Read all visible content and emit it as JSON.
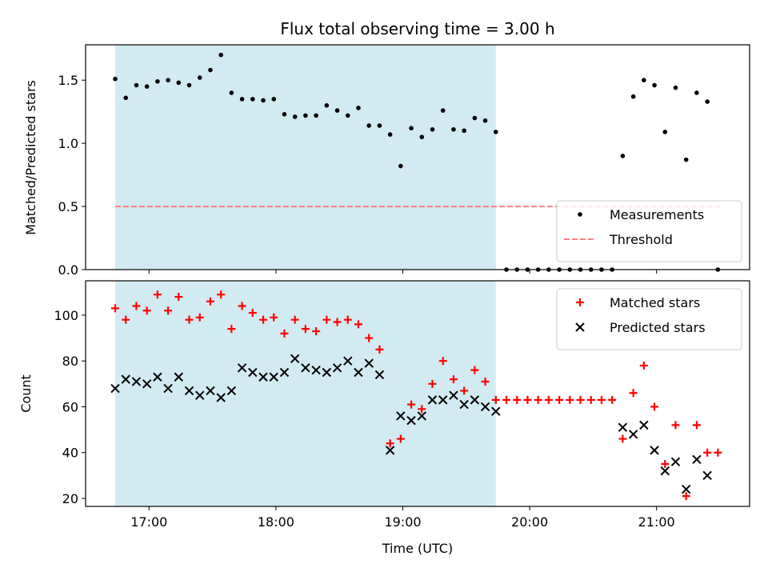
{
  "chart_data": [
    {
      "type": "scatter",
      "title": "Flux total observing time = 3.00 h",
      "xlabel": "",
      "ylabel": "Matched/Predicted stars",
      "ylim": [
        0,
        1.78
      ],
      "yticks": [
        "0.0",
        "0.5",
        "1.0",
        "1.5"
      ],
      "ytick_values": [
        0,
        0.5,
        1.0,
        1.5
      ],
      "legend_position": "lower-right",
      "shaded_region": {
        "x_start": "16:44",
        "x_end": "19:44",
        "color": "#add8e6"
      },
      "threshold": {
        "name": "Threshold",
        "value": 0.5,
        "x_start": "16:44",
        "x_end": "21:30",
        "color": "#ff7f7f"
      },
      "series": [
        {
          "name": "Measurements",
          "marker": "dot",
          "color": "#000000",
          "x": [
            "16:44",
            "16:49",
            "16:54",
            "16:59",
            "17:04",
            "17:09",
            "17:14",
            "17:19",
            "17:24",
            "17:29",
            "17:34",
            "17:39",
            "17:44",
            "17:49",
            "17:54",
            "17:59",
            "18:04",
            "18:09",
            "18:14",
            "18:19",
            "18:24",
            "18:29",
            "18:34",
            "18:39",
            "18:44",
            "18:49",
            "18:54",
            "18:59",
            "19:04",
            "19:09",
            "19:14",
            "19:19",
            "19:24",
            "19:29",
            "19:34",
            "19:39",
            "19:44",
            "19:49",
            "19:54",
            "19:59",
            "20:04",
            "20:09",
            "20:14",
            "20:19",
            "20:24",
            "20:29",
            "20:34",
            "20:39",
            "20:44",
            "20:49",
            "20:54",
            "20:59",
            "21:04",
            "21:09",
            "21:14",
            "21:19",
            "21:24",
            "21:29"
          ],
          "y": [
            1.51,
            1.36,
            1.46,
            1.45,
            1.49,
            1.5,
            1.48,
            1.46,
            1.52,
            1.58,
            1.7,
            1.4,
            1.35,
            1.35,
            1.34,
            1.35,
            1.23,
            1.21,
            1.22,
            1.22,
            1.3,
            1.26,
            1.22,
            1.28,
            1.14,
            1.14,
            1.07,
            0.82,
            1.12,
            1.05,
            1.11,
            1.26,
            1.11,
            1.1,
            1.2,
            1.18,
            1.09,
            0,
            0,
            0,
            0,
            0,
            0,
            0,
            0,
            0,
            0,
            0,
            0.9,
            1.37,
            1.5,
            1.46,
            1.09,
            1.44,
            0.87,
            1.4,
            1.33,
            0
          ]
        }
      ]
    },
    {
      "type": "scatter",
      "title": "",
      "xlabel": "Time (UTC)",
      "ylabel": "Count",
      "ylim": [
        16.5,
        115
      ],
      "yticks": [
        "20",
        "40",
        "60",
        "80",
        "100"
      ],
      "ytick_values": [
        20,
        40,
        60,
        80,
        100
      ],
      "xticks": [
        "17:00",
        "18:00",
        "19:00",
        "20:00",
        "21:00"
      ],
      "xtick_values": [
        "17:00",
        "18:00",
        "19:00",
        "20:00",
        "21:00"
      ],
      "legend_position": "upper-right",
      "shaded_region": {
        "x_start": "16:44",
        "x_end": "19:44",
        "color": "#add8e6"
      },
      "series": [
        {
          "name": "Matched stars",
          "marker": "plus",
          "color": "#ff0000",
          "x": [
            "16:44",
            "16:49",
            "16:54",
            "16:59",
            "17:04",
            "17:09",
            "17:14",
            "17:19",
            "17:24",
            "17:29",
            "17:34",
            "17:39",
            "17:44",
            "17:49",
            "17:54",
            "17:59",
            "18:04",
            "18:09",
            "18:14",
            "18:19",
            "18:24",
            "18:29",
            "18:34",
            "18:39",
            "18:44",
            "18:49",
            "18:54",
            "18:59",
            "19:04",
            "19:09",
            "19:14",
            "19:19",
            "19:24",
            "19:29",
            "19:34",
            "19:39",
            "19:44",
            "19:49",
            "19:54",
            "19:59",
            "20:04",
            "20:09",
            "20:14",
            "20:19",
            "20:24",
            "20:29",
            "20:34",
            "20:39",
            "20:44",
            "20:49",
            "20:54",
            "20:59",
            "21:04",
            "21:09",
            "21:14",
            "21:19",
            "21:24",
            "21:29"
          ],
          "y": [
            103,
            98,
            104,
            102,
            109,
            102,
            108,
            98,
            99,
            106,
            109,
            94,
            104,
            101,
            98,
            99,
            92,
            98,
            94,
            93,
            98,
            97,
            98,
            96,
            90,
            85,
            44,
            46,
            61,
            59,
            70,
            80,
            72,
            67,
            76,
            71,
            63,
            63,
            63,
            63,
            63,
            63,
            63,
            63,
            63,
            63,
            63,
            63,
            46,
            66,
            78,
            60,
            35,
            52,
            21,
            52,
            40,
            40
          ]
        },
        {
          "name": "Predicted stars",
          "marker": "x",
          "color": "#000000",
          "x": [
            "16:44",
            "16:49",
            "16:54",
            "16:59",
            "17:04",
            "17:09",
            "17:14",
            "17:19",
            "17:24",
            "17:29",
            "17:34",
            "17:39",
            "17:44",
            "17:49",
            "17:54",
            "17:59",
            "18:04",
            "18:09",
            "18:14",
            "18:19",
            "18:24",
            "18:29",
            "18:34",
            "18:39",
            "18:44",
            "18:49",
            "18:54",
            "18:59",
            "19:04",
            "19:09",
            "19:14",
            "19:19",
            "19:24",
            "19:29",
            "19:34",
            "19:39",
            "19:44",
            "20:44",
            "20:49",
            "20:54",
            "20:59",
            "21:04",
            "21:09",
            "21:14",
            "21:19",
            "21:24"
          ],
          "y": [
            68,
            72,
            71,
            70,
            73,
            68,
            73,
            67,
            65,
            67,
            64,
            67,
            77,
            75,
            73,
            73,
            75,
            81,
            77,
            76,
            75,
            77,
            80,
            75,
            79,
            74,
            41,
            56,
            54,
            56,
            63,
            63,
            65,
            61,
            63,
            60,
            58,
            51,
            48,
            52,
            41,
            32,
            36,
            24,
            37,
            30
          ]
        }
      ]
    }
  ]
}
